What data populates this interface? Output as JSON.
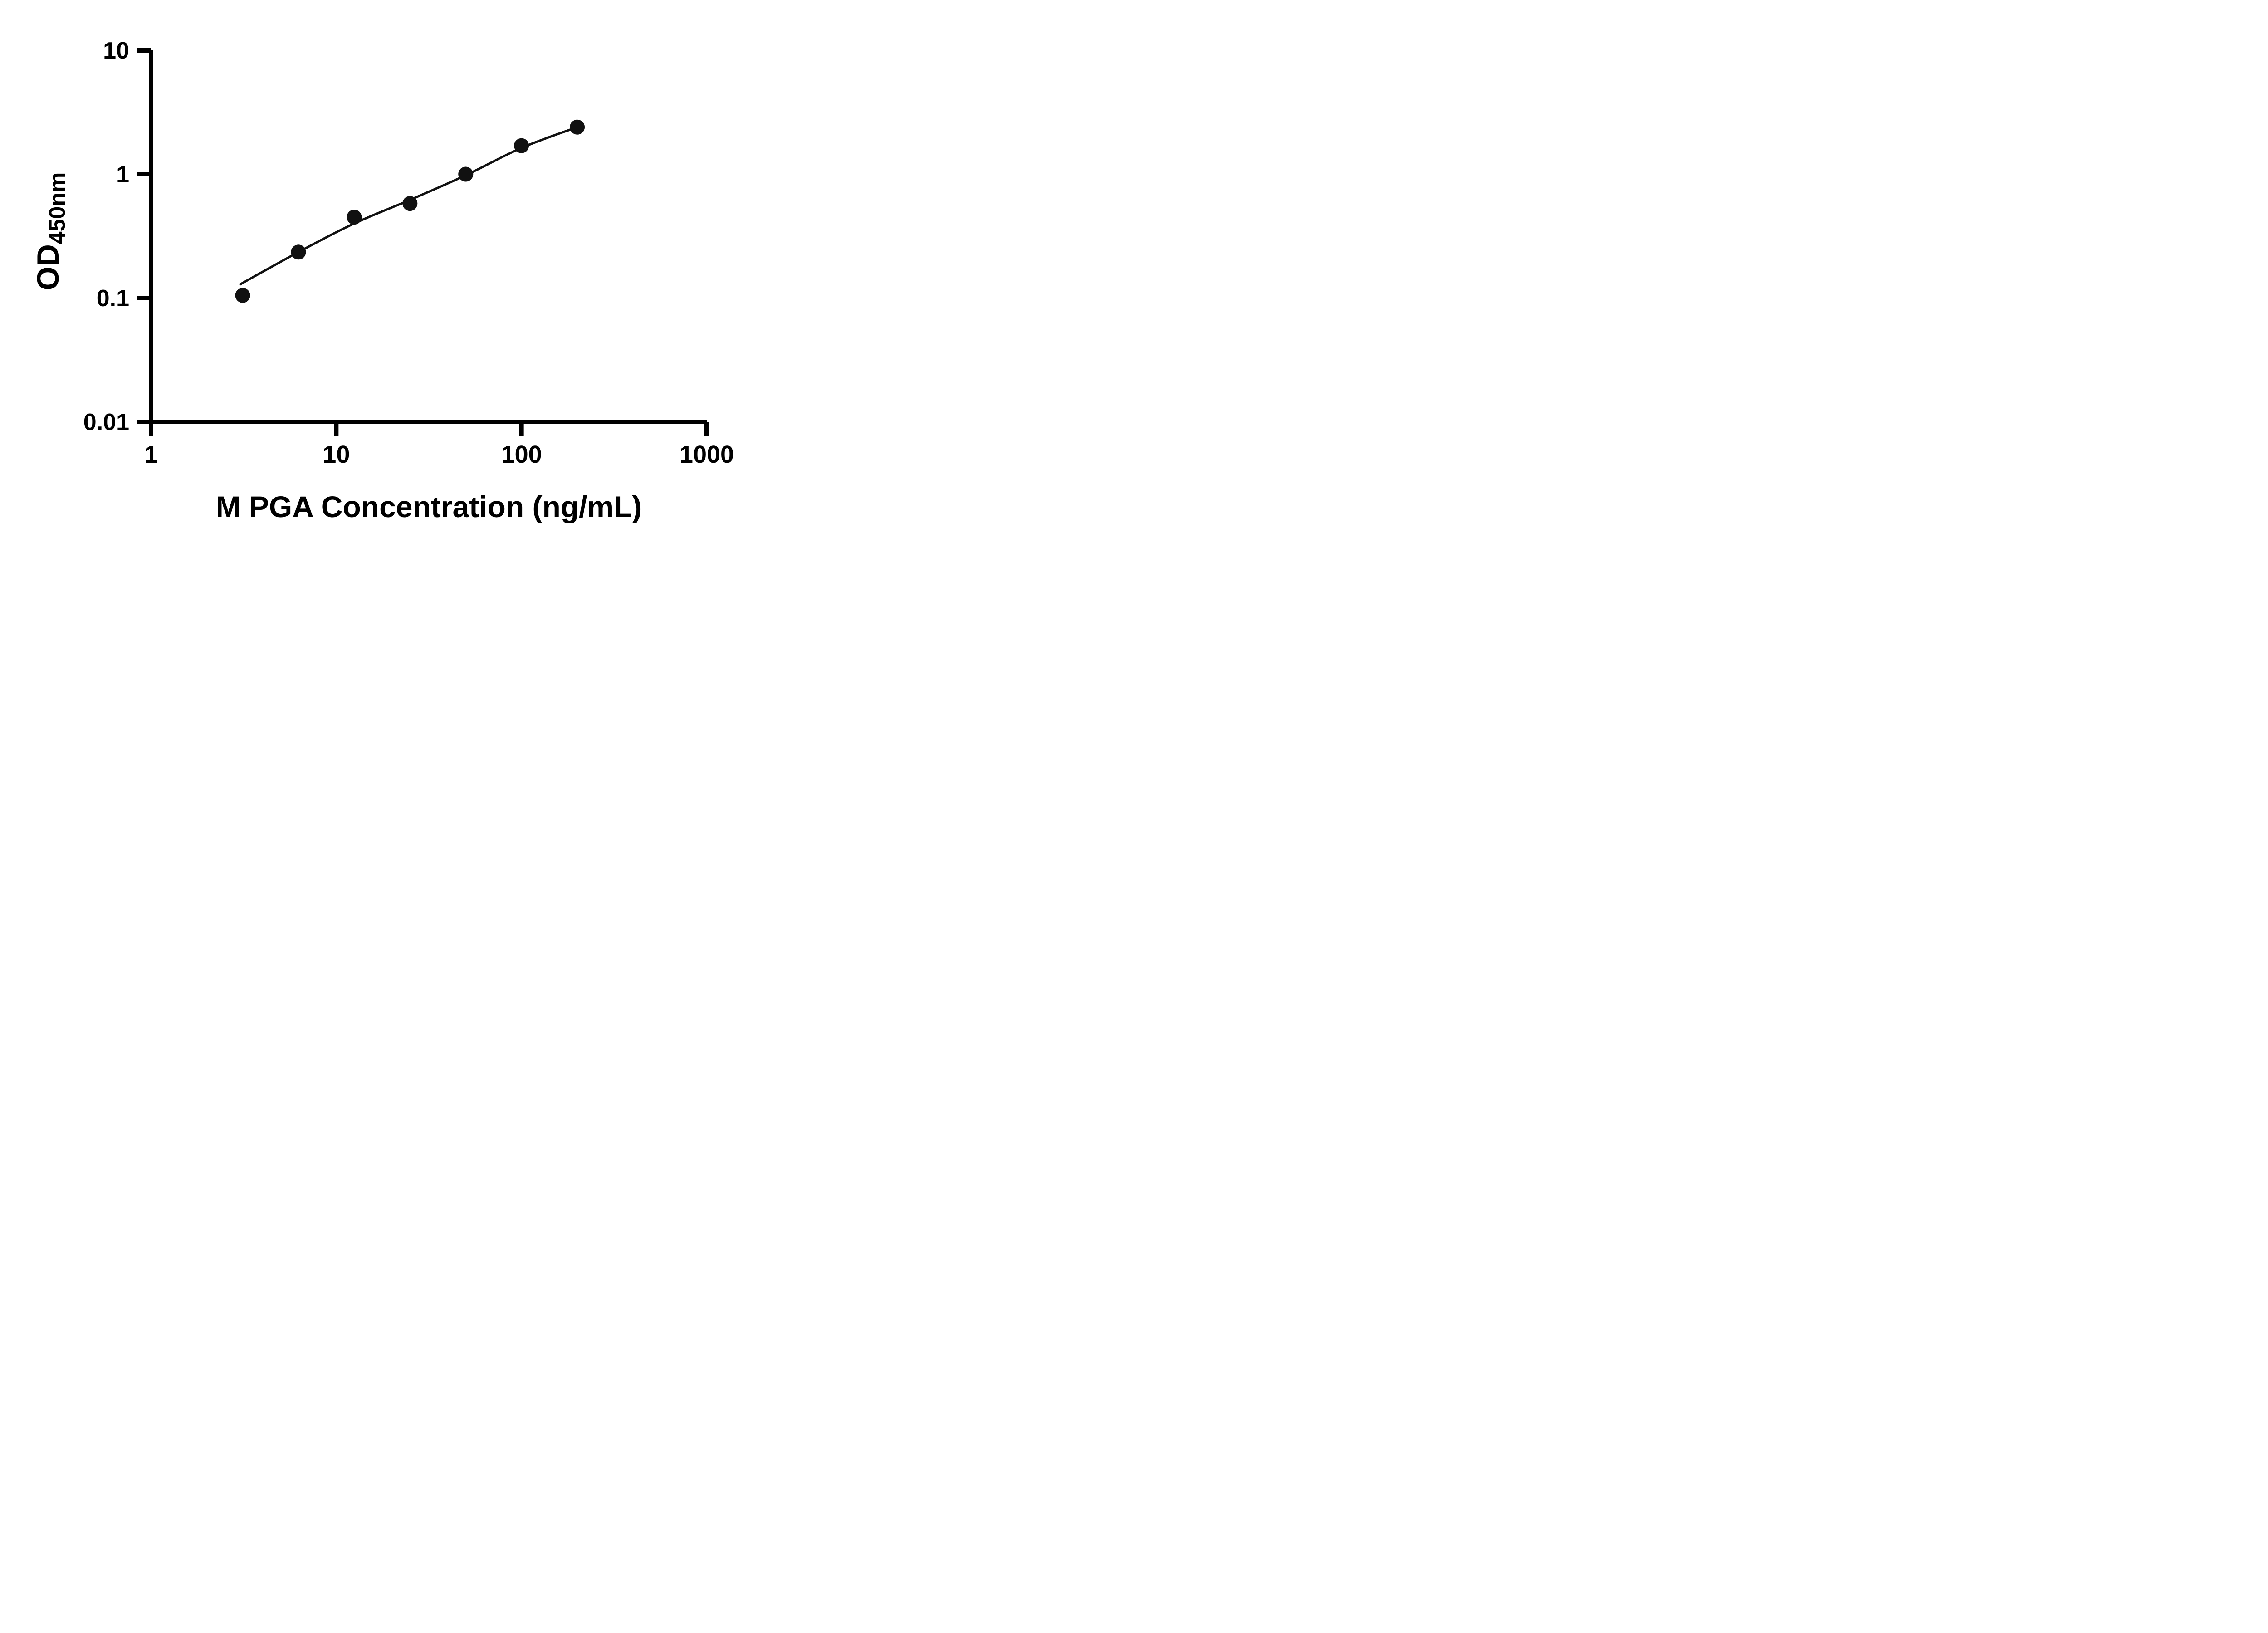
{
  "chart_data": {
    "type": "scatter",
    "title": "",
    "xlabel": "M PGA Concentration (ng/mL)",
    "ylabel": "OD",
    "ylabel_subscript": "450nm",
    "x_scale": "log",
    "y_scale": "log",
    "xlim": [
      1,
      1000
    ],
    "ylim": [
      0.01,
      10
    ],
    "x_ticks": [
      1,
      10,
      100,
      1000
    ],
    "x_tick_labels": [
      "1",
      "10",
      "100",
      "1000"
    ],
    "y_ticks": [
      0.01,
      0.1,
      1,
      10
    ],
    "y_tick_labels": [
      "0.01",
      "0.1",
      "1",
      "10"
    ],
    "grid": false,
    "legend": false,
    "series": [
      {
        "name": "standard-points",
        "type": "scatter",
        "x": [
          3.125,
          6.25,
          12.5,
          25,
          50,
          100,
          200
        ],
        "y": [
          0.105,
          0.235,
          0.45,
          0.58,
          1.0,
          1.7,
          2.4
        ]
      },
      {
        "name": "fit-curve",
        "type": "line",
        "x": [
          3.0,
          6.25,
          12.5,
          25,
          50,
          100,
          200
        ],
        "y": [
          0.128,
          0.235,
          0.4,
          0.62,
          0.98,
          1.63,
          2.4
        ]
      }
    ],
    "colors": {
      "axis": "#000000",
      "marker": "#111111",
      "line": "#111111",
      "background": "#ffffff"
    }
  }
}
